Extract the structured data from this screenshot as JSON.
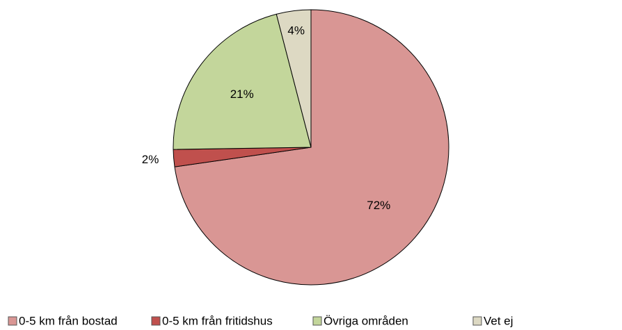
{
  "chart_data": {
    "type": "pie",
    "categories": [
      "0-5 km från bostad",
      "0-5 km från fritidshus",
      "Övriga områden",
      "Vet ej"
    ],
    "values": [
      72,
      2,
      21,
      4
    ],
    "value_labels": [
      "72%",
      "2%",
      "21%",
      "4%"
    ],
    "colors": [
      "#d99694",
      "#c0504d",
      "#c3d69b",
      "#ddd9c3"
    ],
    "legend": "bottom"
  }
}
